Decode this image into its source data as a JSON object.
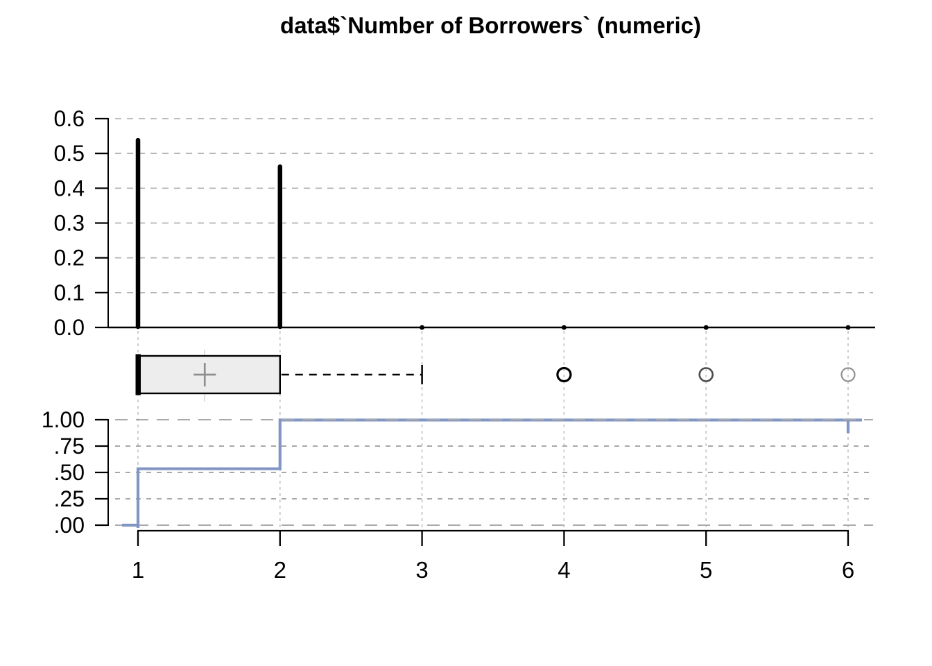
{
  "title": "data$`Number of Borrowers` (numeric)",
  "colors": {
    "ecdf_line": "#8296C4",
    "grid_vertical": "#c6c6c6",
    "grid_horizontal_top": "#b2b2b2",
    "grid_ecdf_minor": "#9c9c9c",
    "grid_ecdf_major": "#a9a9a9",
    "box_fill": "#ededed",
    "box_border": "#000000",
    "median_line": "#000000",
    "mean_marker": "#8f8f8f",
    "mean_guide": "#d4d4d4",
    "whisker": "#000000",
    "axis": "#000000",
    "spike": "#000000"
  },
  "x_axis": {
    "ticks": [
      1,
      2,
      3,
      4,
      5,
      6
    ],
    "labels": [
      "1",
      "2",
      "3",
      "4",
      "5",
      "6"
    ]
  },
  "chart_data": [
    {
      "type": "bar",
      "panel": "relative-frequency-spikes",
      "title": "data$`Number of Borrowers` (numeric)",
      "x": [
        1,
        2,
        3,
        4,
        5,
        6
      ],
      "values": [
        0.538,
        0.462,
        0.001,
        0.001,
        0.0005,
        0.0005
      ],
      "ylim": [
        0,
        0.6
      ],
      "yticks": {
        "values": [
          0.0,
          0.1,
          0.2,
          0.3,
          0.4,
          0.5,
          0.6
        ],
        "labels": [
          "0.0",
          "0.1",
          "0.2",
          "0.3",
          "0.4",
          "0.5",
          "0.6"
        ]
      },
      "grid": true,
      "note": "values 3-6 render as dots on the baseline"
    },
    {
      "type": "boxplot",
      "panel": "horizontal-boxplot",
      "orientation": "horizontal",
      "q1": 1,
      "median": 1,
      "q3": 2,
      "whisker_low": 1,
      "whisker_high": 3,
      "mean": 1.47,
      "outliers": [
        {
          "x": 4,
          "color": "#000000",
          "stroke": 3.2
        },
        {
          "x": 5,
          "color": "#4d4d4d",
          "stroke": 2.6
        },
        {
          "x": 6,
          "color": "#909090",
          "stroke": 2.2
        }
      ]
    },
    {
      "type": "line",
      "panel": "ecdf-step",
      "steps": [
        {
          "x": 1,
          "f": 0.535
        },
        {
          "x": 2,
          "f": 0.997
        },
        {
          "x": 6,
          "f": 1.0
        }
      ],
      "ylim": [
        0,
        1
      ],
      "yticks": {
        "values": [
          0.0,
          0.25,
          0.5,
          0.75,
          1.0
        ],
        "labels": [
          ".00",
          ".25",
          ".50",
          ".75",
          "1.00"
        ]
      },
      "grid": true,
      "legend": "none"
    }
  ]
}
